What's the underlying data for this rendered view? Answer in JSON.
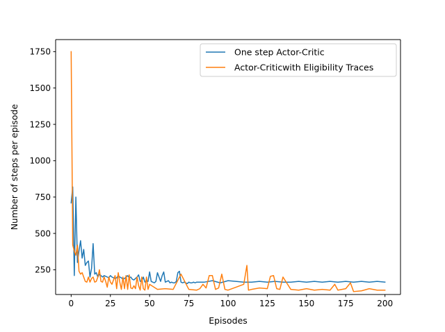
{
  "chart_data": {
    "type": "line",
    "title": "",
    "xlabel": "Episodes",
    "ylabel": "Number of steps per episode",
    "xlim": [
      -9.9,
      209.9
    ],
    "ylim": [
      80,
      1833
    ],
    "xticks": [
      0,
      25,
      50,
      75,
      100,
      125,
      150,
      175,
      200
    ],
    "yticks": [
      250,
      500,
      750,
      1000,
      1250,
      1500,
      1750
    ],
    "grid": false,
    "legend_position": "top-right",
    "series": [
      {
        "name": "One step Actor-Critic",
        "color": "#1f77b4",
        "x": [
          0,
          1,
          2,
          3,
          4,
          5,
          6,
          7,
          8,
          9,
          10,
          11,
          12,
          13,
          14,
          15,
          16,
          17,
          18,
          19,
          20,
          21,
          22,
          23,
          24,
          25,
          26,
          27,
          28,
          29,
          30,
          31,
          32,
          33,
          34,
          35,
          36,
          37,
          38,
          39,
          40,
          41,
          42,
          43,
          44,
          45,
          46,
          47,
          48,
          49,
          50,
          51,
          52,
          53,
          54,
          55,
          56,
          57,
          58,
          59,
          60,
          61,
          62,
          63,
          64,
          65,
          66,
          67,
          68,
          69,
          70,
          71,
          72,
          73,
          74,
          75,
          76,
          77,
          78,
          79,
          80,
          85,
          90,
          95,
          100,
          105,
          110,
          115,
          120,
          125,
          130,
          135,
          140,
          145,
          150,
          155,
          160,
          165,
          170,
          175,
          180,
          185,
          190,
          195,
          200
        ],
        "values": [
          710,
          820,
          210,
          750,
          300,
          380,
          450,
          330,
          390,
          280,
          300,
          310,
          200,
          260,
          430,
          220,
          230,
          200,
          220,
          210,
          200,
          210,
          205,
          200,
          195,
          210,
          200,
          195,
          190,
          195,
          210,
          200,
          195,
          185,
          190,
          200,
          210,
          195,
          200,
          185,
          180,
          190,
          200,
          215,
          170,
          175,
          200,
          165,
          175,
          170,
          235,
          170,
          165,
          160,
          170,
          230,
          200,
          170,
          210,
          235,
          165,
          170,
          175,
          160,
          165,
          160,
          160,
          170,
          230,
          240,
          165,
          160,
          165,
          160,
          155,
          165,
          160,
          160,
          165,
          160,
          165,
          165,
          175,
          160,
          175,
          170,
          165,
          165,
          170,
          165,
          170,
          165,
          165,
          170,
          165,
          170,
          165,
          170,
          165,
          170,
          165,
          170,
          165,
          170,
          165
        ]
      },
      {
        "name": "Actor-Criticwith Eligibility Traces",
        "color": "#ff7f0e",
        "x": [
          0,
          1,
          2,
          3,
          4,
          5,
          6,
          7,
          8,
          9,
          10,
          11,
          12,
          13,
          14,
          15,
          16,
          17,
          18,
          19,
          20,
          21,
          22,
          23,
          24,
          25,
          26,
          27,
          28,
          29,
          30,
          31,
          32,
          33,
          34,
          35,
          36,
          37,
          38,
          39,
          40,
          41,
          42,
          43,
          44,
          45,
          46,
          47,
          48,
          49,
          50,
          55,
          60,
          65,
          70,
          75,
          80,
          82,
          84,
          86,
          88,
          90,
          92,
          94,
          96,
          98,
          100,
          105,
          110,
          112,
          113,
          115,
          120,
          125,
          127,
          129,
          131,
          133,
          135,
          140,
          145,
          150,
          155,
          160,
          165,
          168,
          170,
          175,
          178,
          180,
          185,
          190,
          195,
          200
        ],
        "values": [
          1750,
          420,
          380,
          350,
          420,
          240,
          220,
          230,
          200,
          170,
          165,
          200,
          165,
          190,
          200,
          165,
          170,
          200,
          250,
          170,
          165,
          200,
          170,
          130,
          200,
          165,
          150,
          180,
          210,
          120,
          230,
          165,
          115,
          200,
          120,
          210,
          115,
          215,
          125,
          120,
          140,
          120,
          200,
          140,
          110,
          200,
          120,
          110,
          200,
          115,
          150,
          115,
          120,
          115,
          220,
          115,
          110,
          120,
          150,
          125,
          210,
          210,
          115,
          125,
          220,
          115,
          110,
          130,
          150,
          280,
          110,
          115,
          125,
          120,
          205,
          210,
          120,
          115,
          200,
          115,
          110,
          120,
          110,
          115,
          110,
          150,
          110,
          120,
          160,
          100,
          105,
          120,
          110,
          110
        ]
      }
    ]
  }
}
